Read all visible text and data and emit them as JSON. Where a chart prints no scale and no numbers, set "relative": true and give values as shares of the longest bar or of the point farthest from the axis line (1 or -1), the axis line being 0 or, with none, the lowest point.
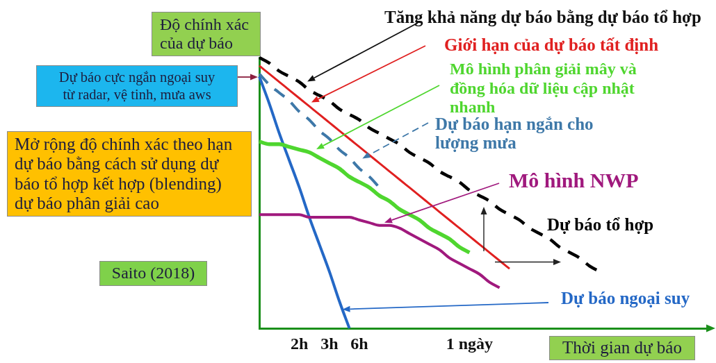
{
  "chart_data": {
    "type": "line",
    "relative": true,
    "marker": "none",
    "xlabel": "Thời gian dự báo",
    "ylabel": "Độ chính xác của dự báo",
    "categories": [
      null,
      null,
      null,
      null,
      "2h",
      null,
      null,
      "3h",
      null,
      null,
      "6h",
      null,
      null,
      null,
      null,
      null,
      null,
      null,
      null,
      null,
      null,
      "1 ngày",
      null,
      null,
      null,
      null,
      null,
      null,
      null,
      null,
      null,
      null,
      null,
      null,
      null,
      null,
      null,
      null,
      null,
      null,
      null,
      null,
      null,
      null,
      null,
      null
    ],
    "series": [
      {
        "name": "Dự báo tổ hợp",
        "color": "#000000",
        "line_style": "dashed",
        "values": [
          1,
          0.98,
          0.95,
          0.93,
          0.91,
          0.88,
          0.86,
          0.84,
          0.81,
          0.79,
          0.77,
          0.74,
          0.72,
          0.7,
          0.68,
          0.65,
          0.63,
          0.61,
          0.58,
          0.56,
          0.54,
          0.51,
          0.49,
          0.47,
          0.44,
          0.42,
          0.4,
          0.37,
          0.35,
          0.33,
          0.3,
          0.28,
          0.26,
          0.23,
          0.21,
          null,
          null,
          null,
          null,
          null,
          null,
          null,
          null,
          null,
          null,
          null
        ]
      },
      {
        "name": "Giới hạn của dự báo tất định",
        "color": "#e02020",
        "line_style": "solid",
        "values": [
          0.97,
          0.94,
          0.91,
          0.88,
          0.85,
          0.82,
          0.79,
          0.76,
          0.73,
          0.7,
          0.67,
          0.64,
          0.61,
          0.58,
          0.55,
          0.52,
          0.49,
          0.46,
          0.43,
          0.4,
          0.37,
          0.34,
          0.31,
          0.28,
          0.25,
          0.22,
          null,
          null,
          null,
          null,
          null,
          null,
          null,
          null,
          null,
          null,
          null,
          null,
          null,
          null,
          null,
          null,
          null,
          null,
          null,
          null
        ]
      },
      {
        "name": "Mô hình phân giải mây và đồng hóa dữ liệu cập nhật nhanh",
        "color": "#4fd62f",
        "line_style": "solid",
        "values": [
          0.69,
          0.68,
          0.68,
          0.67,
          0.66,
          0.65,
          0.63,
          0.61,
          0.59,
          0.56,
          0.54,
          0.52,
          0.49,
          0.47,
          0.44,
          0.42,
          0.4,
          0.37,
          0.35,
          0.33,
          0.3,
          0.28,
          null,
          null,
          null,
          null,
          null,
          null,
          null,
          null,
          null,
          null,
          null,
          null,
          null,
          null,
          null,
          null,
          null,
          null,
          null,
          null,
          null,
          null,
          null,
          null
        ]
      },
      {
        "name": "Dự báo hạn ngắn cho lượng mưa",
        "color": "#3e78a8",
        "line_style": "dashed",
        "values": [
          0.94,
          0.9,
          0.87,
          0.84,
          0.8,
          0.77,
          0.73,
          0.7,
          0.66,
          0.63,
          0.59,
          0.56,
          0.52,
          null,
          null,
          null,
          null,
          null,
          null,
          null,
          null,
          null,
          null,
          null,
          null,
          null,
          null,
          null,
          null,
          null,
          null,
          null,
          null,
          null,
          null,
          null,
          null,
          null,
          null,
          null,
          null,
          null,
          null,
          null,
          null,
          null
        ]
      },
      {
        "name": "Mô hình NWP",
        "color": "#a0197d",
        "line_style": "solid",
        "values": [
          0.42,
          0.42,
          0.42,
          0.42,
          0.42,
          0.41,
          0.41,
          0.41,
          0.41,
          0.41,
          0.4,
          0.39,
          0.38,
          0.38,
          0.37,
          0.35,
          0.33,
          0.31,
          0.29,
          0.26,
          0.24,
          0.22,
          0.2,
          0.17,
          0.15,
          null,
          null,
          null,
          null,
          null,
          null,
          null,
          null,
          null,
          null,
          null,
          null,
          null,
          null,
          null,
          null,
          null,
          null,
          null,
          null,
          null
        ]
      },
      {
        "name": "Dự báo ngoại suy",
        "color": "#2468c6",
        "line_style": "solid",
        "values": [
          0.93,
          0.83,
          0.72,
          0.62,
          0.52,
          0.41,
          0.31,
          0.21,
          0.1,
          0,
          null,
          null,
          null,
          null,
          null,
          null,
          null,
          null,
          null,
          null,
          null,
          null,
          null,
          null,
          null,
          null,
          null,
          null,
          null,
          null,
          null,
          null,
          null,
          null,
          null,
          null,
          null,
          null,
          null,
          null,
          null,
          null,
          null,
          null,
          null,
          null
        ]
      }
    ],
    "annotations": [
      "Tăng khả năng dự báo bằng dự báo tổ hợp",
      "Dự báo cực ngắn ngoại suy từ radar, vệ tinh, mưa aws",
      "Mở rộng độ chính xác theo hạn dự báo bằng cách sử dụng dự báo tổ hợp kết hợp (blending) dự báo phân giải cao",
      "Saito (2018)"
    ]
  }
}
